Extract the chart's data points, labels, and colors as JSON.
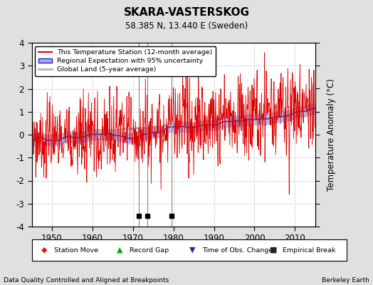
{
  "title": "SKARA-VASTERSKOG",
  "subtitle": "58.385 N, 13.440 E (Sweden)",
  "ylabel": "Temperature Anomaly (°C)",
  "xlabel_left": "Data Quality Controlled and Aligned at Breakpoints",
  "xlabel_right": "Berkeley Earth",
  "ylim": [
    -4,
    4
  ],
  "xlim": [
    1945,
    2015
  ],
  "xticks": [
    1950,
    1960,
    1970,
    1980,
    1990,
    2000,
    2010
  ],
  "yticks": [
    -4,
    -3,
    -2,
    -1,
    0,
    1,
    2,
    3,
    4
  ],
  "empirical_breaks": [
    1971.5,
    1973.5,
    1979.5
  ],
  "bg_color": "#e0e0e0",
  "plot_bg_color": "#ffffff",
  "grid_color": "#cccccc",
  "station_line_color": "#dd0000",
  "regional_line_color": "#2222bb",
  "regional_fill_color": "#aaaaee",
  "global_land_color": "#bbbbbb",
  "legend_labels": [
    "This Temperature Station (12-month average)",
    "Regional Expectation with 95% uncertainty",
    "Global Land (5-year average)"
  ]
}
